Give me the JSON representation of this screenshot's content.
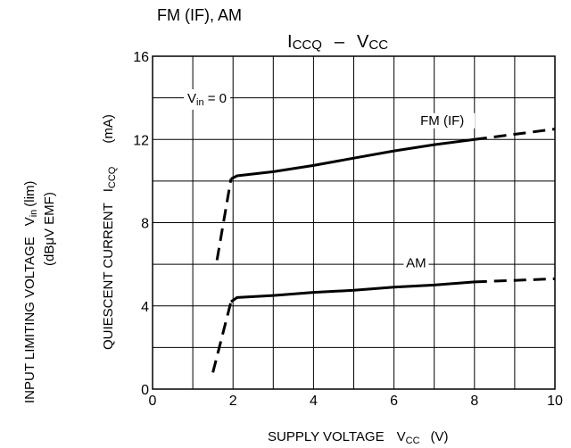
{
  "header": {
    "mode_label": "FM (IF), AM"
  },
  "chart_data": {
    "type": "line",
    "title_main": "I",
    "title_main_sub": "CCQ",
    "title_dash": "–",
    "title_vcc": "V",
    "title_vcc_sub": "CC",
    "xlabel_prefix": "SUPPLY VOLTAGE",
    "xlabel_var": "V",
    "xlabel_sub": "CC",
    "xlabel_unit": "(V)",
    "ylabel_outer_line1_prefix": "INPUT LIMITING VOLTAGE",
    "ylabel_outer_line1_var": "V",
    "ylabel_outer_line1_sub": "in",
    "ylabel_outer_line1_suffix": "(lim)",
    "ylabel_outer_line2": "(dBμV EMF)",
    "ylabel_inner_prefix": "QUIESCENT CURRENT",
    "ylabel_inner_var": "I",
    "ylabel_inner_sub": "CCQ",
    "ylabel_inner_unit": "(mA)",
    "condition_var": "V",
    "condition_sub": "in",
    "condition_rest": " = 0",
    "xlim": [
      0,
      10
    ],
    "ylim": [
      0,
      16
    ],
    "x_ticks": [
      "0",
      "2",
      "4",
      "6",
      "8",
      "10"
    ],
    "y_ticks": [
      "0",
      "4",
      "8",
      "12",
      "16"
    ],
    "grid": true,
    "series": [
      {
        "name": "FM (IF)",
        "style": "solid",
        "points": [
          [
            1.95,
            10.1
          ],
          [
            2.1,
            10.25
          ],
          [
            3,
            10.45
          ],
          [
            4,
            10.75
          ],
          [
            5,
            11.1
          ],
          [
            6,
            11.45
          ],
          [
            7,
            11.75
          ],
          [
            8,
            12.0
          ]
        ]
      },
      {
        "name": "FM (IF)",
        "style": "dashed",
        "points": [
          [
            1.6,
            6.2
          ],
          [
            1.95,
            10.1
          ]
        ]
      },
      {
        "name": "FM (IF)",
        "style": "dashed",
        "points": [
          [
            8.0,
            12.0
          ],
          [
            10.0,
            12.5
          ]
        ]
      },
      {
        "name": "AM",
        "style": "solid",
        "points": [
          [
            1.95,
            4.2
          ],
          [
            2.1,
            4.4
          ],
          [
            3,
            4.5
          ],
          [
            4,
            4.65
          ],
          [
            5,
            4.75
          ],
          [
            6,
            4.9
          ],
          [
            7,
            5.0
          ],
          [
            8,
            5.15
          ]
        ]
      },
      {
        "name": "AM",
        "style": "dashed",
        "points": [
          [
            1.5,
            0.8
          ],
          [
            1.95,
            4.2
          ]
        ]
      },
      {
        "name": "AM",
        "style": "dashed",
        "points": [
          [
            8.0,
            5.15
          ],
          [
            10.0,
            5.3
          ]
        ]
      }
    ],
    "series_labels": [
      {
        "text": "FM (IF)",
        "x": 7.2,
        "y": 12.75
      },
      {
        "text": "AM",
        "x": 6.55,
        "y": 5.9
      }
    ]
  }
}
